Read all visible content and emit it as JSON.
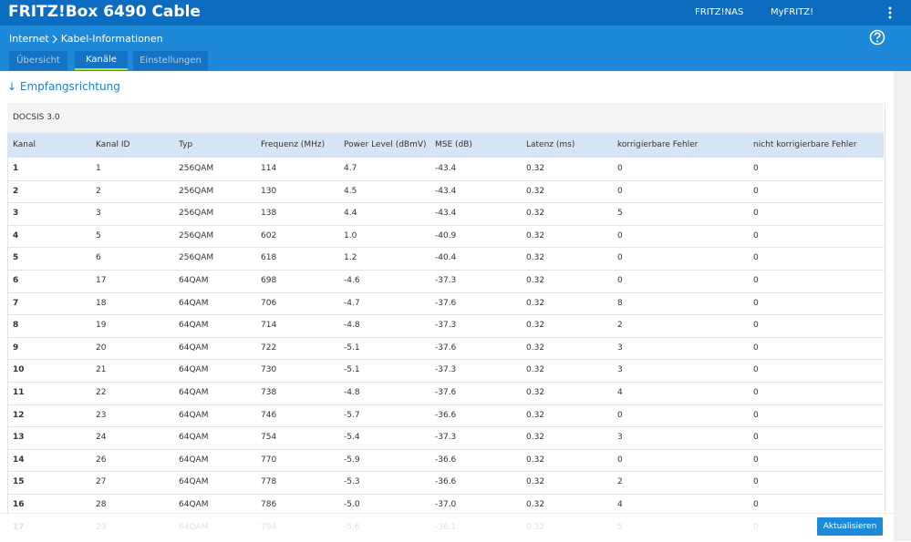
{
  "header": {
    "title": "FRITZ!Box 6490 Cable",
    "nav": [
      "FRITZ!NAS",
      "MyFRITZ!"
    ]
  },
  "breadcrumb": [
    "Internet",
    "Kabel-Informationen"
  ],
  "tabs": [
    "Übersicht",
    "Kanäle",
    "Einstellungen"
  ],
  "section": "↓ Empfangsrichtung",
  "table": {
    "caption": "DOCSIS 3.0",
    "columns": [
      "Kanal",
      "Kanal ID",
      "Typ",
      "Frequenz (MHz)",
      "Power Level (dBmV)",
      "MSE (dB)",
      "Latenz (ms)",
      "korrigierbare Fehler",
      "nicht korrigierbare Fehler"
    ],
    "rows": [
      [
        "1",
        "1",
        "256QAM",
        "114",
        "4.7",
        "-43.4",
        "0.32",
        "0",
        "0"
      ],
      [
        "2",
        "2",
        "256QAM",
        "130",
        "4.5",
        "-43.4",
        "0.32",
        "0",
        "0"
      ],
      [
        "3",
        "3",
        "256QAM",
        "138",
        "4.4",
        "-43.4",
        "0.32",
        "5",
        "0"
      ],
      [
        "4",
        "5",
        "256QAM",
        "602",
        "1.0",
        "-40.9",
        "0.32",
        "0",
        "0"
      ],
      [
        "5",
        "6",
        "256QAM",
        "618",
        "1.2",
        "-40.4",
        "0.32",
        "0",
        "0"
      ],
      [
        "6",
        "17",
        "64QAM",
        "698",
        "-4.6",
        "-37.3",
        "0.32",
        "0",
        "0"
      ],
      [
        "7",
        "18",
        "64QAM",
        "706",
        "-4.7",
        "-37.6",
        "0.32",
        "8",
        "0"
      ],
      [
        "8",
        "19",
        "64QAM",
        "714",
        "-4.8",
        "-37.3",
        "0.32",
        "2",
        "0"
      ],
      [
        "9",
        "20",
        "64QAM",
        "722",
        "-5.1",
        "-37.6",
        "0.32",
        "3",
        "0"
      ],
      [
        "10",
        "21",
        "64QAM",
        "730",
        "-5.1",
        "-37.3",
        "0.32",
        "3",
        "0"
      ],
      [
        "11",
        "22",
        "64QAM",
        "738",
        "-4.8",
        "-37.6",
        "0.32",
        "4",
        "0"
      ],
      [
        "12",
        "23",
        "64QAM",
        "746",
        "-5.7",
        "-36.6",
        "0.32",
        "0",
        "0"
      ],
      [
        "13",
        "24",
        "64QAM",
        "754",
        "-5.4",
        "-37.3",
        "0.32",
        "3",
        "0"
      ],
      [
        "14",
        "26",
        "64QAM",
        "770",
        "-5.9",
        "-36.6",
        "0.32",
        "0",
        "0"
      ],
      [
        "15",
        "27",
        "64QAM",
        "778",
        "-5.3",
        "-36.6",
        "0.32",
        "2",
        "0"
      ],
      [
        "16",
        "28",
        "64QAM",
        "786",
        "-5.0",
        "-37.0",
        "0.32",
        "4",
        "0"
      ],
      [
        "17",
        "29",
        "64QAM",
        "794",
        "-5.6",
        "-36.1",
        "0.32",
        "5",
        "0"
      ]
    ]
  },
  "button": "Aktualisieren"
}
